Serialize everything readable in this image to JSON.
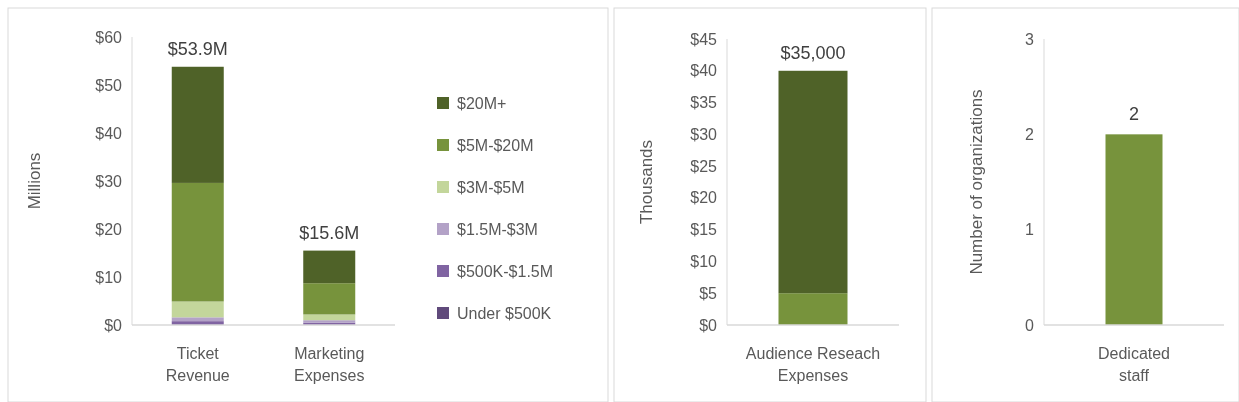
{
  "chart_data": [
    {
      "type": "bar",
      "stacked": true,
      "ylabel": "Millions",
      "categories": [
        "Ticket Revenue",
        "Marketing Expenses"
      ],
      "ylim": [
        0,
        60
      ],
      "yticks": [
        {
          "value": 0,
          "label": "$0"
        },
        {
          "value": 10,
          "label": "$10"
        },
        {
          "value": 20,
          "label": "$20"
        },
        {
          "value": 30,
          "label": "$30"
        },
        {
          "value": 40,
          "label": "$40"
        },
        {
          "value": 50,
          "label": "$50"
        },
        {
          "value": 60,
          "label": "$60"
        }
      ],
      "legend": "right",
      "grid": false,
      "totals": [
        "$53.9M",
        "$15.6M"
      ],
      "series": [
        {
          "name": "Under $500K",
          "color": "#604a7b",
          "values": [
            null,
            null
          ]
        },
        {
          "name": "$500K-$1.5M",
          "color": "#8064a2",
          "values": [
            0.8,
            0.5
          ]
        },
        {
          "name": "$1.5M-$3M",
          "color": "#b3a2c7",
          "values": [
            0.8,
            0.5
          ]
        },
        {
          "name": "$3M-$5M",
          "color": "#c3d69b",
          "values": [
            3.3,
            1.2
          ]
        },
        {
          "name": "$5M-$20M",
          "color": "#77933c",
          "values": [
            24.7,
            6.5
          ]
        },
        {
          "name": "$20M+",
          "color": "#4f6228",
          "values": [
            24.2,
            6.8
          ]
        }
      ]
    },
    {
      "type": "bar",
      "stacked": true,
      "ylabel": "Thousands",
      "categories": [
        "Audience Reseach Expenses"
      ],
      "ylim": [
        0,
        45
      ],
      "yticks": [
        {
          "value": 0,
          "label": "$0"
        },
        {
          "value": 5,
          "label": "$5"
        },
        {
          "value": 10,
          "label": "$10"
        },
        {
          "value": 15,
          "label": "$15"
        },
        {
          "value": 20,
          "label": "$20"
        },
        {
          "value": 25,
          "label": "$25"
        },
        {
          "value": 30,
          "label": "$30"
        },
        {
          "value": 35,
          "label": "$35"
        },
        {
          "value": 40,
          "label": "$40"
        },
        {
          "value": 45,
          "label": "$45"
        }
      ],
      "grid": false,
      "annotations": [
        {
          "text": "$35,000",
          "x": "Audience Reseach Expenses",
          "y": 40
        }
      ],
      "series": [
        {
          "color": "#77933c",
          "values": [
            5
          ]
        },
        {
          "color": "#4f6228",
          "values": [
            35
          ]
        }
      ]
    },
    {
      "type": "bar",
      "ylabel": "Number of organizations",
      "categories": [
        "Dedicated staff"
      ],
      "ylim": [
        0,
        3
      ],
      "yticks": [
        0,
        1,
        2,
        3
      ],
      "grid": false,
      "data_labels": true,
      "values": [
        2
      ],
      "color": "#77933c"
    }
  ]
}
